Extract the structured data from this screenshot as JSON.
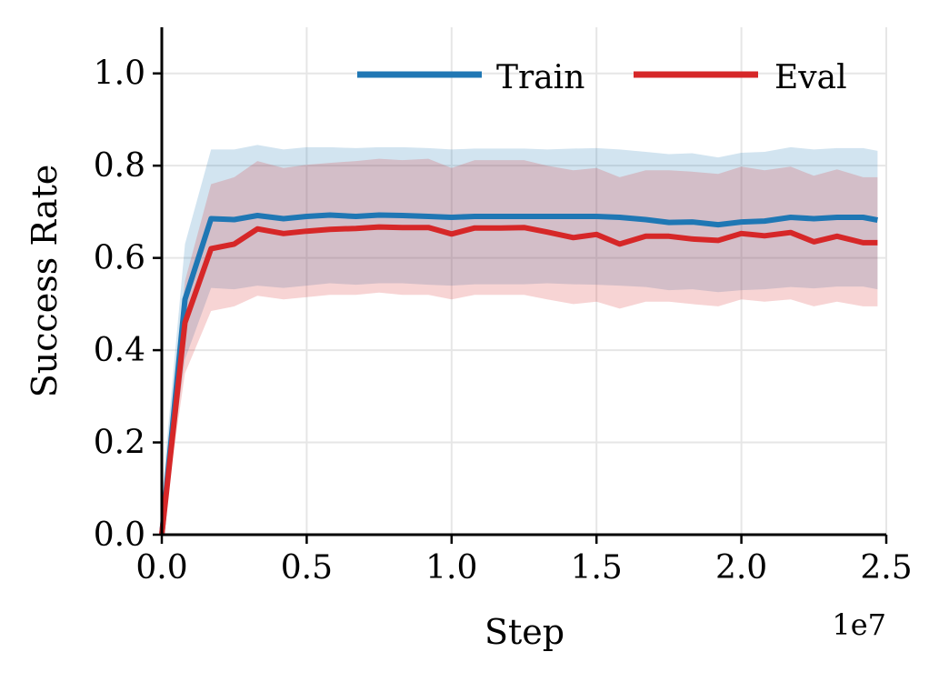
{
  "chart_data": {
    "type": "line",
    "title": "",
    "xlabel": "Step",
    "ylabel": "Success Rate",
    "x_offset_label": "1e7",
    "xlim": [
      0.0,
      2.5
    ],
    "ylim": [
      0.0,
      1.1
    ],
    "x_ticks": [
      0.0,
      0.5,
      1.0,
      1.5,
      2.0,
      2.5
    ],
    "x_tick_labels": [
      "0.0",
      "0.5",
      "1.0",
      "1.5",
      "2.0",
      "2.5"
    ],
    "y_ticks": [
      0.0,
      0.2,
      0.4,
      0.6,
      0.8,
      1.0
    ],
    "y_tick_labels": [
      "0.0",
      "0.2",
      "0.4",
      "0.6",
      "0.8",
      "1.0"
    ],
    "grid": true,
    "legend_position": "top-right",
    "x": [
      0.0,
      0.08,
      0.17,
      0.25,
      0.33,
      0.42,
      0.5,
      0.58,
      0.67,
      0.75,
      0.83,
      0.92,
      1.0,
      1.08,
      1.17,
      1.25,
      1.33,
      1.42,
      1.5,
      1.58,
      1.67,
      1.75,
      1.83,
      1.92,
      2.0,
      2.08,
      2.17,
      2.25,
      2.33,
      2.42,
      2.47
    ],
    "series": [
      {
        "name": "Train",
        "color": "#1f77b4",
        "values": [
          0.0,
          0.51,
          0.685,
          0.683,
          0.692,
          0.685,
          0.69,
          0.693,
          0.69,
          0.693,
          0.692,
          0.69,
          0.688,
          0.69,
          0.69,
          0.69,
          0.69,
          0.69,
          0.69,
          0.688,
          0.683,
          0.677,
          0.678,
          0.672,
          0.678,
          0.68,
          0.688,
          0.685,
          0.688,
          0.688,
          0.682
        ],
        "upper": [
          0.08,
          0.63,
          0.835,
          0.835,
          0.845,
          0.835,
          0.84,
          0.84,
          0.838,
          0.84,
          0.84,
          0.838,
          0.835,
          0.837,
          0.837,
          0.837,
          0.835,
          0.837,
          0.838,
          0.835,
          0.83,
          0.825,
          0.827,
          0.818,
          0.828,
          0.83,
          0.84,
          0.835,
          0.838,
          0.838,
          0.832
        ],
        "lower": [
          0.0,
          0.38,
          0.535,
          0.532,
          0.54,
          0.535,
          0.54,
          0.545,
          0.542,
          0.545,
          0.545,
          0.542,
          0.54,
          0.543,
          0.543,
          0.543,
          0.545,
          0.543,
          0.542,
          0.54,
          0.537,
          0.53,
          0.532,
          0.526,
          0.53,
          0.532,
          0.537,
          0.534,
          0.538,
          0.538,
          0.532
        ]
      },
      {
        "name": "Eval",
        "color": "#d62728",
        "values": [
          0.0,
          0.46,
          0.62,
          0.63,
          0.663,
          0.653,
          0.658,
          0.662,
          0.664,
          0.667,
          0.666,
          0.666,
          0.652,
          0.665,
          0.665,
          0.666,
          0.656,
          0.644,
          0.651,
          0.63,
          0.647,
          0.647,
          0.641,
          0.638,
          0.653,
          0.648,
          0.655,
          0.635,
          0.647,
          0.633,
          0.633
        ],
        "upper": [
          0.06,
          0.55,
          0.76,
          0.775,
          0.81,
          0.795,
          0.802,
          0.806,
          0.81,
          0.815,
          0.812,
          0.815,
          0.795,
          0.812,
          0.812,
          0.812,
          0.8,
          0.79,
          0.795,
          0.775,
          0.79,
          0.79,
          0.787,
          0.782,
          0.798,
          0.79,
          0.798,
          0.778,
          0.792,
          0.775,
          0.775
        ],
        "lower": [
          0.0,
          0.35,
          0.485,
          0.495,
          0.518,
          0.51,
          0.515,
          0.52,
          0.52,
          0.525,
          0.52,
          0.52,
          0.51,
          0.52,
          0.52,
          0.52,
          0.51,
          0.5,
          0.505,
          0.49,
          0.505,
          0.505,
          0.5,
          0.495,
          0.51,
          0.505,
          0.51,
          0.495,
          0.505,
          0.495,
          0.495
        ]
      }
    ]
  }
}
